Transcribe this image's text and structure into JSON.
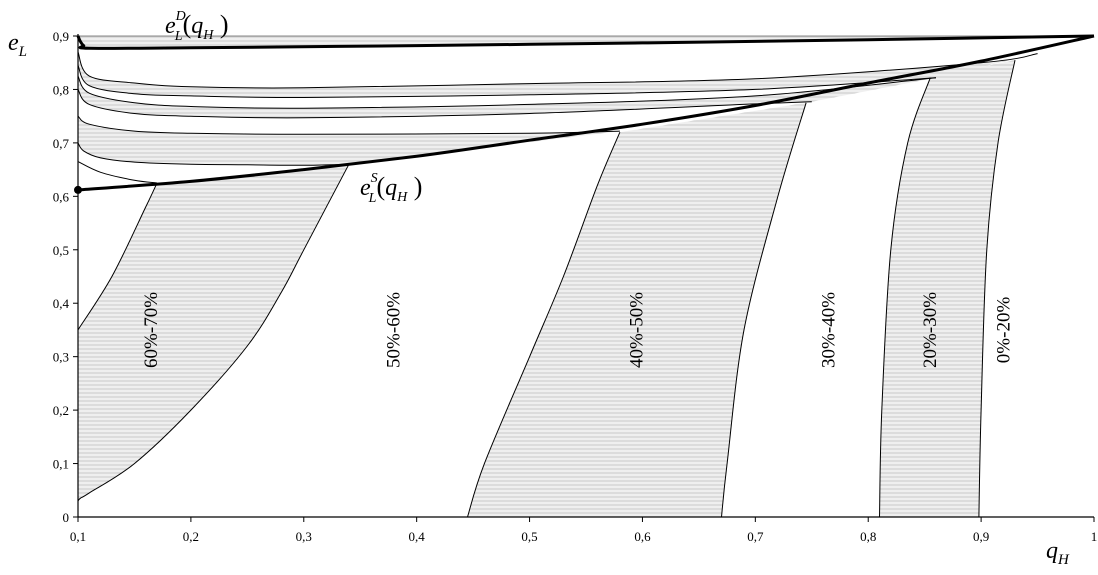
{
  "chart_data": {
    "type": "area",
    "x_axis": {
      "label_main": "q",
      "label_sub": "H",
      "range": [
        0.1,
        1
      ],
      "ticks": [
        "0,1",
        "0,2",
        "0,3",
        "0,4",
        "0,5",
        "0,6",
        "0,7",
        "0,8",
        "0,9",
        "1"
      ]
    },
    "y_axis": {
      "label_main": "e",
      "label_sub": "L",
      "range": [
        0,
        0.9
      ],
      "ticks": [
        "0",
        "0,1",
        "0,2",
        "0,3",
        "0,4",
        "0,5",
        "0,6",
        "0,7",
        "0,8",
        "0,9"
      ]
    },
    "grid": false,
    "curves": {
      "eD": {
        "label_main": "e",
        "label_sub": "L",
        "label_sup": "D",
        "label_arg": "q",
        "label_arg_sub": "H",
        "x": [
          0.1,
          0.102,
          0.105,
          0.11,
          0.2,
          0.4,
          0.6,
          0.8,
          1.0
        ],
        "y": [
          0.9,
          0.89,
          0.882,
          0.877,
          0.878,
          0.882,
          0.887,
          0.893,
          0.9
        ]
      },
      "eS": {
        "label_main": "e",
        "label_sub": "L",
        "label_sup": "S",
        "label_arg": "q",
        "label_arg_sub": "H",
        "x": [
          0.1,
          0.2,
          0.3,
          0.4,
          0.5,
          0.6,
          0.7,
          0.8,
          0.9,
          1.0
        ],
        "y": [
          0.612,
          0.628,
          0.65,
          0.675,
          0.705,
          0.735,
          0.77,
          0.812,
          0.853,
          0.9
        ]
      }
    },
    "iso_curves": [
      {
        "x": [
          0.1,
          0.11,
          0.15,
          0.2,
          0.3,
          0.5,
          0.7,
          0.9,
          0.95
        ],
        "y": [
          0.87,
          0.825,
          0.812,
          0.805,
          0.803,
          0.811,
          0.82,
          0.85,
          0.867
        ]
      },
      {
        "x": [
          0.1,
          0.11,
          0.15,
          0.2,
          0.3,
          0.5,
          0.7,
          0.86
        ],
        "y": [
          0.845,
          0.807,
          0.792,
          0.788,
          0.785,
          0.79,
          0.8,
          0.822
        ]
      },
      {
        "x": [
          0.1,
          0.11,
          0.15,
          0.2,
          0.3,
          0.5,
          0.7,
          0.86
        ],
        "y": [
          0.825,
          0.793,
          0.775,
          0.768,
          0.765,
          0.772,
          0.788,
          0.822
        ]
      },
      {
        "x": [
          0.1,
          0.11,
          0.15,
          0.2,
          0.3,
          0.5,
          0.7,
          0.75
        ],
        "y": [
          0.8,
          0.772,
          0.755,
          0.75,
          0.747,
          0.755,
          0.773,
          0.777
        ]
      },
      {
        "x": [
          0.1,
          0.11,
          0.15,
          0.2,
          0.3,
          0.5,
          0.58
        ],
        "y": [
          0.75,
          0.735,
          0.722,
          0.718,
          0.716,
          0.718,
          0.722
        ]
      },
      {
        "x": [
          0.1,
          0.105,
          0.12,
          0.15,
          0.2,
          0.25,
          0.3,
          0.34
        ],
        "y": [
          0.7,
          0.685,
          0.672,
          0.664,
          0.66,
          0.659,
          0.658,
          0.66
        ]
      },
      {
        "x": [
          0.1,
          0.12,
          0.15,
          0.17
        ],
        "y": [
          0.665,
          0.645,
          0.63,
          0.625
        ]
      }
    ],
    "boundaries": [
      {
        "x": [
          0.1,
          0.102,
          0.11,
          0.15,
          0.2,
          0.25,
          0.28,
          0.3,
          0.34
        ],
        "y": [
          0.03,
          0.035,
          0.045,
          0.1,
          0.2,
          0.32,
          0.42,
          0.5,
          0.66
        ]
      },
      {
        "x": [
          0.1,
          0.13,
          0.16,
          0.17
        ],
        "y": [
          0.35,
          0.45,
          0.58,
          0.625
        ]
      },
      {
        "x": [
          0.445,
          0.46,
          0.5,
          0.53,
          0.56,
          0.58
        ],
        "y": [
          0.0,
          0.1,
          0.3,
          0.45,
          0.62,
          0.72
        ]
      },
      {
        "x": [
          0.67,
          0.675,
          0.69,
          0.72,
          0.745
        ],
        "y": [
          0.0,
          0.1,
          0.35,
          0.6,
          0.775
        ]
      },
      {
        "x": [
          0.81,
          0.812,
          0.82,
          0.835,
          0.855
        ],
        "y": [
          0.0,
          0.2,
          0.5,
          0.7,
          0.822
        ]
      },
      {
        "x": [
          0.898,
          0.9,
          0.905,
          0.915,
          0.93
        ],
        "y": [
          0.0,
          0.2,
          0.5,
          0.7,
          0.855
        ]
      }
    ],
    "bands": [
      {
        "name": "60%-70%",
        "label_at": [
          0.17,
          0.35
        ]
      },
      {
        "name": "50%-60%",
        "label_at": [
          0.385,
          0.35
        ]
      },
      {
        "name": "40%-50%",
        "label_at": [
          0.6,
          0.35
        ]
      },
      {
        "name": "30%-40%",
        "label_at": [
          0.77,
          0.35
        ]
      },
      {
        "name": "20%-30%",
        "label_at": [
          0.86,
          0.35
        ]
      },
      {
        "name": "0%-20%",
        "label_at": [
          0.925,
          0.35
        ]
      }
    ],
    "colors": {
      "line": "#000000",
      "shade": "#e8e8e8",
      "hatch": "#b8b8b8"
    }
  }
}
